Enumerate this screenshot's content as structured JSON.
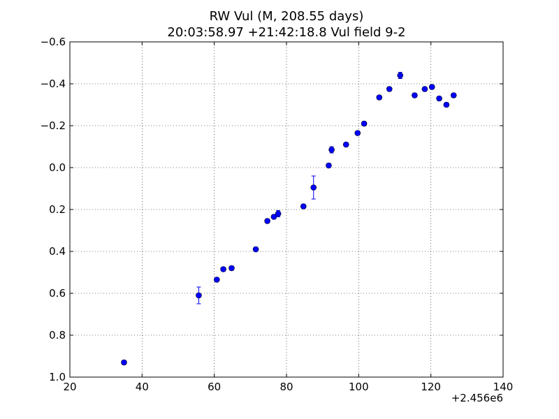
{
  "chart_data": {
    "type": "scatter",
    "title_line1": "RW Vul (M, 208.55 days)",
    "title_line2": "20:03:58.97 +21:42:18.8 Vul field 9-2",
    "xlabel": "",
    "ylabel": "",
    "x_offset_label": "+2.456e6",
    "x_offset": 2456000,
    "xlim": [
      2456020,
      2456140
    ],
    "ylim": [
      1.0,
      -0.6
    ],
    "y_inverted": true,
    "x_ticks": [
      2456020,
      2456040,
      2456060,
      2456080,
      2456100,
      2456120,
      2456140
    ],
    "x_tick_labels": [
      "20",
      "40",
      "60",
      "80",
      "100",
      "120",
      "140"
    ],
    "y_ticks": [
      -0.6,
      -0.4,
      -0.2,
      0.0,
      0.2,
      0.4,
      0.6,
      0.8,
      1.0
    ],
    "y_tick_labels": [
      "−0.6",
      "−0.4",
      "−0.2",
      "0.0",
      "0.2",
      "0.4",
      "0.6",
      "0.8",
      "1.0"
    ],
    "grid": true,
    "color": "#0000ff",
    "points": [
      {
        "x": 2456035.0,
        "y": 0.93,
        "err": 0.01
      },
      {
        "x": 2456055.7,
        "y": 0.61,
        "err": 0.04
      },
      {
        "x": 2456060.7,
        "y": 0.535,
        "err": 0.01
      },
      {
        "x": 2456062.5,
        "y": 0.485,
        "err": 0.01
      },
      {
        "x": 2456064.8,
        "y": 0.48,
        "err": 0.01
      },
      {
        "x": 2456071.5,
        "y": 0.39,
        "err": 0.01
      },
      {
        "x": 2456074.7,
        "y": 0.255,
        "err": 0.01
      },
      {
        "x": 2456076.5,
        "y": 0.235,
        "err": 0.01
      },
      {
        "x": 2456077.7,
        "y": 0.22,
        "err": 0.015
      },
      {
        "x": 2456084.7,
        "y": 0.185,
        "err": 0.01
      },
      {
        "x": 2456087.5,
        "y": 0.095,
        "err": 0.055
      },
      {
        "x": 2456091.7,
        "y": -0.01,
        "err": 0.01
      },
      {
        "x": 2456092.5,
        "y": -0.085,
        "err": 0.015
      },
      {
        "x": 2456096.5,
        "y": -0.11,
        "err": 0.01
      },
      {
        "x": 2456099.7,
        "y": -0.165,
        "err": 0.01
      },
      {
        "x": 2456101.5,
        "y": -0.21,
        "err": 0.01
      },
      {
        "x": 2456105.7,
        "y": -0.335,
        "err": 0.01
      },
      {
        "x": 2456108.5,
        "y": -0.375,
        "err": 0.01
      },
      {
        "x": 2456111.5,
        "y": -0.44,
        "err": 0.015
      },
      {
        "x": 2456115.5,
        "y": -0.345,
        "err": 0.01
      },
      {
        "x": 2456118.3,
        "y": -0.375,
        "err": 0.01
      },
      {
        "x": 2456120.3,
        "y": -0.385,
        "err": 0.01
      },
      {
        "x": 2456122.3,
        "y": -0.33,
        "err": 0.01
      },
      {
        "x": 2456124.3,
        "y": -0.3,
        "err": 0.01
      },
      {
        "x": 2456126.3,
        "y": -0.345,
        "err": 0.01
      }
    ]
  }
}
